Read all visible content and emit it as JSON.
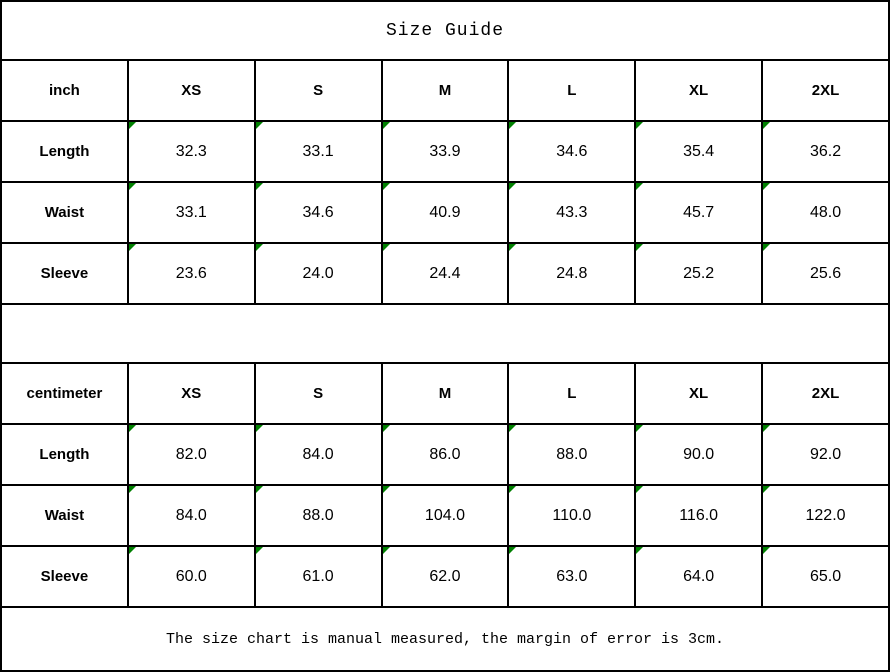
{
  "title": "Size Guide",
  "footer_note": "The size chart is manual measured, the margin of error is 3cm.",
  "colors": {
    "border": "#000000",
    "background": "#ffffff",
    "cell_flag_green": "#008000",
    "text": "#000000"
  },
  "icons": {
    "cell_flag": "green-corner-triangle"
  },
  "chart_data": [
    {
      "type": "table",
      "title": "Size Guide",
      "unit": "inch",
      "columns": [
        "XS",
        "S",
        "M",
        "L",
        "XL",
        "2XL"
      ],
      "rows": [
        {
          "label": "Length",
          "values": [
            "32.3",
            "33.1",
            "33.9",
            "34.6",
            "35.4",
            "36.2"
          ]
        },
        {
          "label": "Waist",
          "values": [
            "33.1",
            "34.6",
            "40.9",
            "43.3",
            "45.7",
            "48.0"
          ]
        },
        {
          "label": "Sleeve",
          "values": [
            "23.6",
            "24.0",
            "24.4",
            "24.8",
            "25.2",
            "25.6"
          ]
        }
      ]
    },
    {
      "type": "table",
      "title": "Size Guide",
      "unit": "centimeter",
      "columns": [
        "XS",
        "S",
        "M",
        "L",
        "XL",
        "2XL"
      ],
      "rows": [
        {
          "label": "Length",
          "values": [
            "82.0",
            "84.0",
            "86.0",
            "88.0",
            "90.0",
            "92.0"
          ]
        },
        {
          "label": "Waist",
          "values": [
            "84.0",
            "88.0",
            "104.0",
            "110.0",
            "116.0",
            "122.0"
          ]
        },
        {
          "label": "Sleeve",
          "values": [
            "60.0",
            "61.0",
            "62.0",
            "63.0",
            "64.0",
            "65.0"
          ]
        }
      ]
    }
  ]
}
